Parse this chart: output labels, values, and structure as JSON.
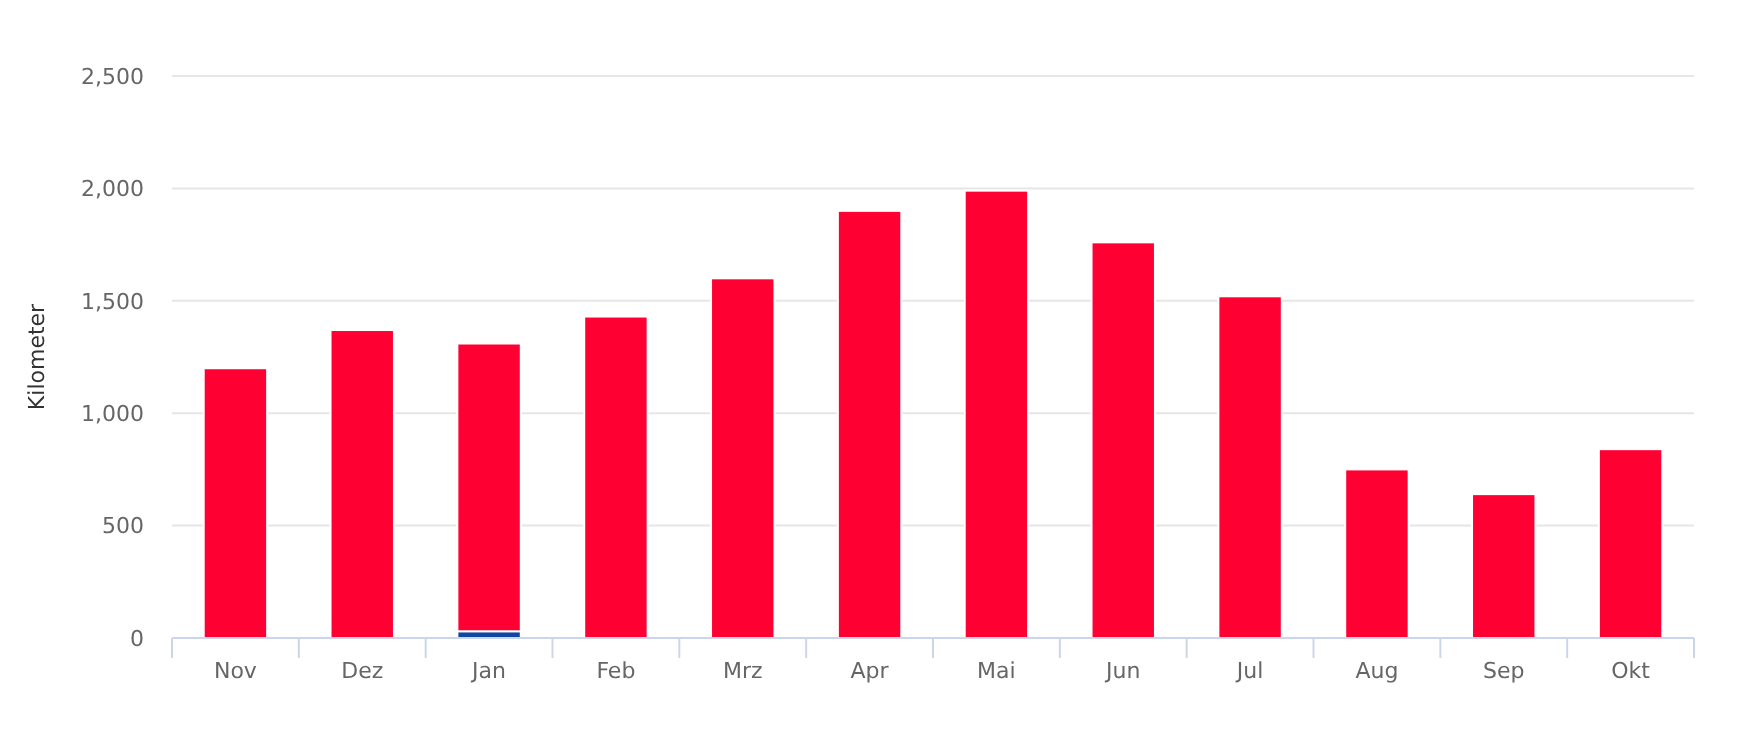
{
  "chart_data": {
    "type": "bar",
    "ylabel": "Kilometer",
    "stacked": true,
    "categories": [
      "Nov",
      "Dez",
      "Jan",
      "Feb",
      "Mrz",
      "Apr",
      "Mai",
      "Jun",
      "Jul",
      "Aug",
      "Sep",
      "Okt"
    ],
    "series": [
      {
        "color": "#0d47a1",
        "values": [
          0,
          0,
          30,
          0,
          0,
          0,
          0,
          0,
          0,
          0,
          0,
          0
        ]
      },
      {
        "color": "#ff0033",
        "values": [
          1200,
          1370,
          1280,
          1430,
          1600,
          1900,
          1990,
          1760,
          1520,
          750,
          640,
          840
        ]
      }
    ],
    "ylim": [
      0,
      2500
    ],
    "yticks": [
      {
        "value": 0,
        "label": "0"
      },
      {
        "value": 500,
        "label": "500"
      },
      {
        "value": 1000,
        "label": "1,000"
      },
      {
        "value": 1500,
        "label": "1,500"
      },
      {
        "value": 2000,
        "label": "2,000"
      },
      {
        "value": 2500,
        "label": "2,500"
      }
    ],
    "grid": "y"
  }
}
